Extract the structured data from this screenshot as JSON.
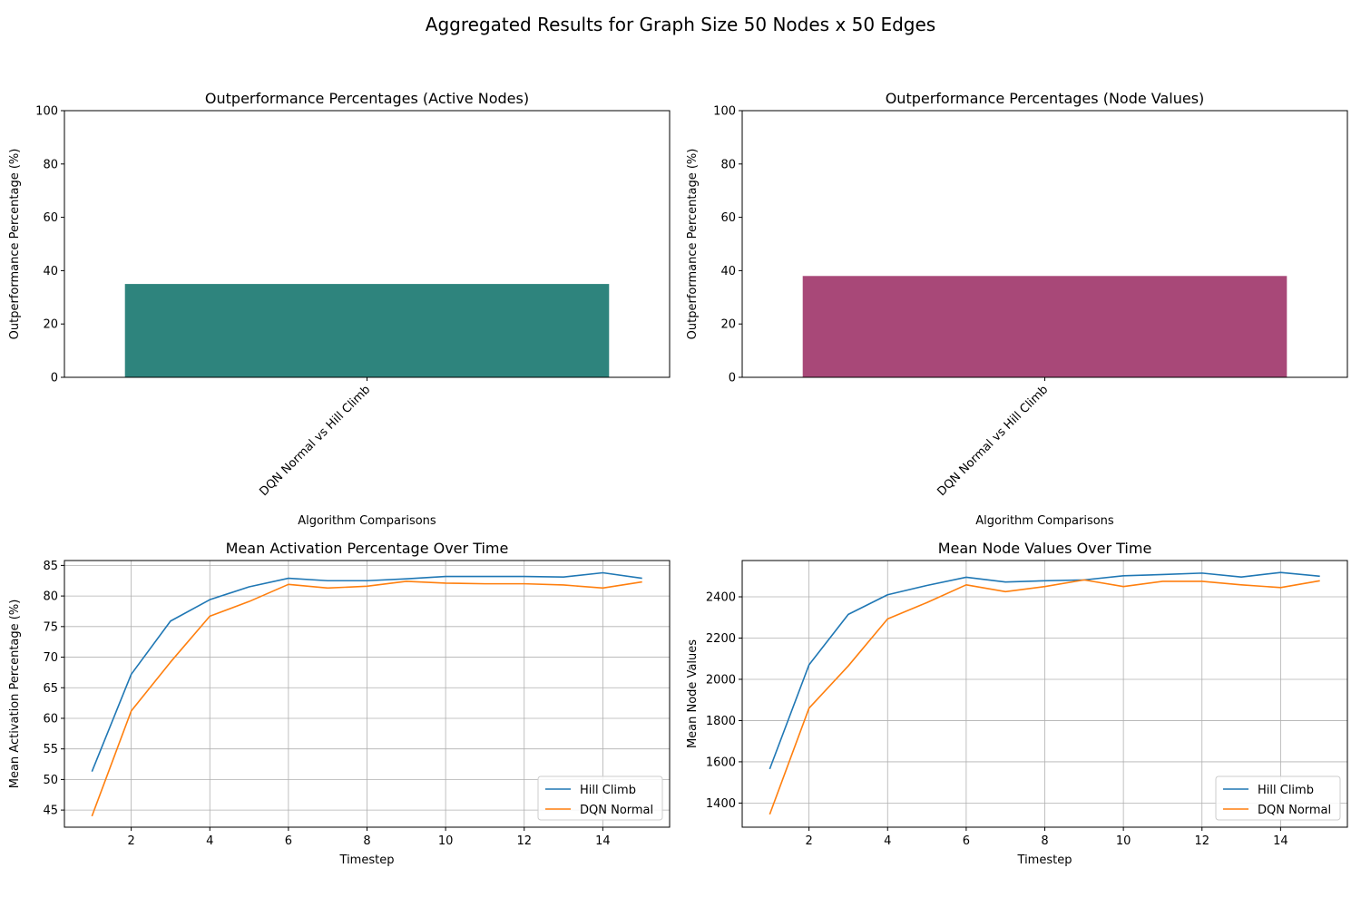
{
  "figure": {
    "suptitle": "Aggregated Results for Graph Size 50 Nodes x 50 Edges"
  },
  "chart_data": [
    {
      "type": "bar",
      "title": "Outperformance Percentages (Active Nodes)",
      "xlabel": "Algorithm Comparisons",
      "ylabel": "Outperformance Percentage (%)",
      "categories": [
        "DQN Normal vs Hill Climb"
      ],
      "values": [
        35
      ],
      "ylim": [
        0,
        100
      ],
      "yticks": [
        0,
        20,
        40,
        60,
        80,
        100
      ],
      "color": "#2e847d",
      "grid": false
    },
    {
      "type": "bar",
      "title": "Outperformance Percentages (Node Values)",
      "xlabel": "Algorithm Comparisons",
      "ylabel": "Outperformance Percentage (%)",
      "categories": [
        "DQN Normal vs Hill Climb"
      ],
      "values": [
        38
      ],
      "ylim": [
        0,
        100
      ],
      "yticks": [
        0,
        20,
        40,
        60,
        80,
        100
      ],
      "color": "#a84878",
      "grid": false
    },
    {
      "type": "line",
      "title": "Mean Activation Percentage Over Time",
      "xlabel": "Timestep",
      "ylabel": "Mean Activation Percentage (%)",
      "x": [
        1,
        2,
        3,
        4,
        5,
        6,
        7,
        8,
        9,
        10,
        11,
        12,
        13,
        14,
        15
      ],
      "xlim": [
        0.3,
        15.7
      ],
      "ylim": [
        42.2,
        85.8
      ],
      "xticks": [
        2,
        4,
        6,
        8,
        10,
        12,
        14
      ],
      "yticks": [
        45,
        50,
        55,
        60,
        65,
        70,
        75,
        80,
        85
      ],
      "grid": true,
      "legend_position": "lower-right",
      "series": [
        {
          "name": "Hill Climb",
          "color": "#1f77b4",
          "values": [
            51.3,
            67.2,
            75.9,
            79.4,
            81.5,
            82.9,
            82.5,
            82.5,
            82.8,
            83.2,
            83.2,
            83.2,
            83.1,
            83.8,
            82.9
          ]
        },
        {
          "name": "DQN Normal",
          "color": "#ff7f0e",
          "values": [
            44.0,
            61.2,
            69.2,
            76.7,
            79.1,
            81.9,
            81.3,
            81.6,
            82.4,
            82.1,
            82.0,
            82.0,
            81.8,
            81.3,
            82.3
          ]
        }
      ]
    },
    {
      "type": "line",
      "title": "Mean Node Values Over Time",
      "xlabel": "Timestep",
      "ylabel": "Mean Node Values",
      "x": [
        1,
        2,
        3,
        4,
        5,
        6,
        7,
        8,
        9,
        10,
        11,
        12,
        13,
        14,
        15
      ],
      "xlim": [
        0.3,
        15.7
      ],
      "ylim": [
        1283,
        2576
      ],
      "xticks": [
        2,
        4,
        6,
        8,
        10,
        12,
        14
      ],
      "yticks": [
        1400,
        1600,
        1800,
        2000,
        2200,
        2400
      ],
      "grid": true,
      "legend_position": "lower-right",
      "series": [
        {
          "name": "Hill Climb",
          "color": "#1f77b4",
          "values": [
            1565,
            2070,
            2315,
            2410,
            2455,
            2495,
            2472,
            2478,
            2482,
            2502,
            2508,
            2515,
            2496,
            2518,
            2500
          ]
        },
        {
          "name": "DQN Normal",
          "color": "#ff7f0e",
          "values": [
            1345,
            1860,
            2065,
            2293,
            2372,
            2458,
            2425,
            2450,
            2482,
            2450,
            2475,
            2475,
            2458,
            2445,
            2478
          ]
        }
      ]
    }
  ]
}
